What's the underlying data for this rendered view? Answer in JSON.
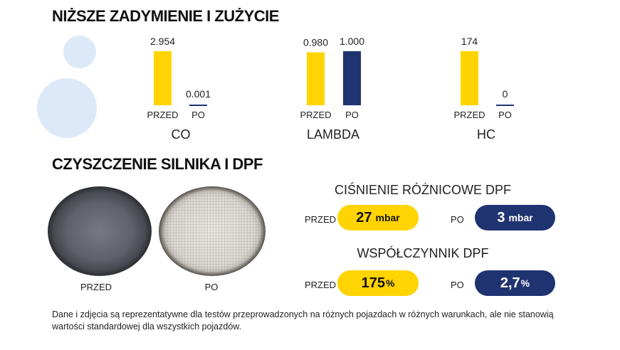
{
  "headings": {
    "emissions": "NIŻSZE ZADYMIENIE I ZUŻYCIE",
    "cleaning": "CZYSZCZENIE SILNIKA I DPF"
  },
  "colors": {
    "before": "#ffd400",
    "after": "#1f3371",
    "decor": "#dce9f8"
  },
  "chart_data": {
    "type": "bar",
    "title": "NIŻSZE ZADYMIENIE I ZUŻYCIE",
    "categories": [
      "CO",
      "LAMBDA",
      "HC"
    ],
    "bar_labels": [
      "PRZED",
      "PO"
    ],
    "groups": [
      {
        "name": "CO",
        "before": {
          "label": "PRZED",
          "value": 2.954,
          "display": "2.954"
        },
        "after": {
          "label": "PO",
          "value": 0.001,
          "display": "0.001"
        }
      },
      {
        "name": "LAMBDA",
        "before": {
          "label": "PRZED",
          "value": 0.98,
          "display": "0.980"
        },
        "after": {
          "label": "PO",
          "value": 1.0,
          "display": "1.000"
        }
      },
      {
        "name": "HC",
        "before": {
          "label": "PRZED",
          "value": 174,
          "display": "174"
        },
        "after": {
          "label": "PO",
          "value": 0,
          "display": "0"
        }
      }
    ],
    "grid": false,
    "legend": "none"
  },
  "photos": {
    "before_label": "PRZED",
    "after_label": "PO"
  },
  "metrics": [
    {
      "title": "CIŚNIENIE RÓŻNICOWE DPF",
      "before_label": "PRZED",
      "before_value": "27",
      "before_unit": "mbar",
      "after_label": "PO",
      "after_value": "3",
      "after_unit": "mbar"
    },
    {
      "title": "WSPÓŁCZYNNIK DPF",
      "before_label": "PRZED",
      "before_value": "175",
      "before_unit": "%",
      "after_label": "PO",
      "after_value": "2,7",
      "after_unit": "%"
    }
  ],
  "footnote": "Dane i zdjęcia są reprezentatywne dla testów przeprowadzonych na różnych pojazdach w różnych warunkach, ale nie stanowią wartości standardowej dla wszystkich pojazdów."
}
